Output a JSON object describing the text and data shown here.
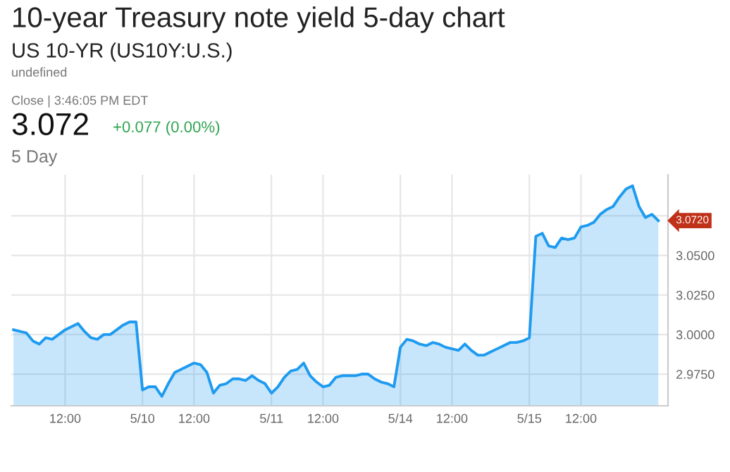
{
  "chart_data": {
    "type": "area",
    "title": "10-year Treasury note yield 5-day chart",
    "subtitle": "US 10-YR (US10Y:U.S.)",
    "annotations": [
      "undefined",
      "Close | 3:46:05 PM EDT",
      "3.072",
      "+0.077 (0.00%)",
      "5 Day",
      "3.0720"
    ],
    "categories": [
      null,
      null,
      null,
      null,
      null,
      null,
      null,
      null,
      "12:00",
      null,
      null,
      null,
      null,
      null,
      null,
      null,
      null,
      null,
      null,
      null,
      "5/10",
      null,
      null,
      null,
      null,
      null,
      null,
      null,
      "12:00",
      null,
      null,
      null,
      null,
      null,
      null,
      null,
      null,
      null,
      null,
      null,
      "5/11",
      null,
      null,
      null,
      null,
      null,
      null,
      null,
      "12:00",
      null,
      null,
      null,
      null,
      null,
      null,
      null,
      null,
      null,
      null,
      null,
      "5/14",
      null,
      null,
      null,
      null,
      null,
      null,
      null,
      "12:00",
      null,
      null,
      null,
      null,
      null,
      null,
      null,
      null,
      null,
      null,
      null,
      "5/15",
      null,
      null,
      null,
      null,
      null,
      null,
      null,
      "12:00",
      null,
      null,
      null,
      null,
      null,
      null,
      null,
      null,
      null,
      null,
      null,
      null
    ],
    "series": [
      {
        "color": "#1e9bf0",
        "values": [
          3.003,
          3.002,
          3.001,
          2.996,
          2.994,
          2.998,
          2.997,
          3.0,
          3.003,
          3.005,
          3.007,
          3.002,
          2.998,
          2.997,
          3.0,
          3.0,
          3.003,
          3.006,
          3.008,
          3.008,
          2.965,
          2.967,
          2.967,
          2.961,
          2.969,
          2.976,
          2.978,
          2.98,
          2.982,
          2.981,
          2.976,
          2.963,
          2.968,
          2.969,
          2.972,
          2.972,
          2.971,
          2.974,
          2.971,
          2.969,
          2.963,
          2.967,
          2.973,
          2.977,
          2.978,
          2.982,
          2.974,
          2.97,
          2.967,
          2.968,
          2.973,
          2.974,
          2.974,
          2.974,
          2.975,
          2.975,
          2.972,
          2.97,
          2.969,
          2.967,
          2.992,
          2.997,
          2.996,
          2.994,
          2.993,
          2.995,
          2.994,
          2.992,
          2.991,
          2.99,
          2.994,
          2.99,
          2.987,
          2.987,
          2.989,
          2.991,
          2.993,
          2.995,
          2.995,
          2.996,
          2.998,
          3.062,
          3.064,
          3.056,
          3.055,
          3.061,
          3.06,
          3.061,
          3.068,
          3.069,
          3.071,
          3.076,
          3.079,
          3.081,
          3.087,
          3.092,
          3.094,
          3.081,
          3.074,
          3.076,
          3.072
        ]
      }
    ],
    "ylim": [
      2.955,
      3.101
    ],
    "yticks": [
      {
        "value": 2.975,
        "label": "2.9750"
      },
      {
        "value": 3.0,
        "label": "3.0000"
      },
      {
        "value": 3.025,
        "label": "3.0250"
      },
      {
        "value": 3.05,
        "label": "3.0500"
      },
      {
        "value": 3.075,
        "label": null
      }
    ],
    "grid": true
  }
}
